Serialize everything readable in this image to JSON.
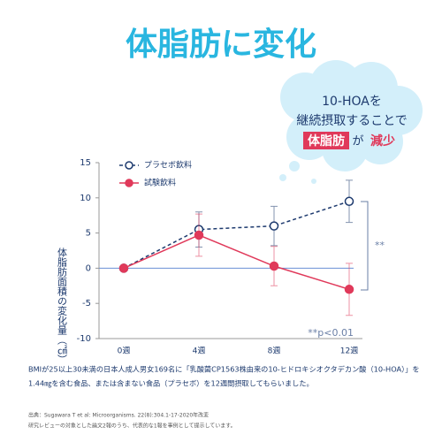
{
  "chart_data": {
    "type": "line",
    "title": "体脂肪に変化",
    "bubble": {
      "line1": "10-HOAを",
      "line2": "継続摂取することで",
      "line3": [
        "体脂肪",
        "が",
        "減少"
      ]
    },
    "y_label": "体脂肪面積の変化量（㎠）",
    "categories": [
      "0週",
      "4週",
      "8週",
      "12週"
    ],
    "series": [
      {
        "name": "プラセボ飲料",
        "color": "#1d3a6e",
        "values": [
          0,
          5.5,
          6,
          9.5
        ],
        "errors": [
          0,
          2.5,
          2.8,
          3
        ]
      },
      {
        "name": "試験飲料",
        "color": "#e0395a",
        "values": [
          0,
          4.7,
          0.3,
          -3
        ],
        "errors": [
          0,
          3,
          2.8,
          3.7
        ]
      }
    ],
    "ylim": [
      -10,
      15
    ],
    "yticks": [
      -10,
      -5,
      0,
      5,
      10,
      15
    ],
    "legend": "upper left",
    "significance": "**",
    "significance_note": "**p<0.01",
    "description": [
      "BMIが25以上30未満の日本人成人男女169名に「乳酸菌CP1563株由来の10-ヒドロキシオクタデカン酸（10-HOA）」を",
      "1.44㎎を含む食品、または含まない食品（プラセボ）を12週間摂取してもらいました。"
    ],
    "source": [
      "出典：Sugawara T et al: Microorganisms. 22(8):304.1-17-2020年改変",
      "研究レビューの対象とした論文2報のうち、代表的な1報を事例として提示しています。"
    ]
  }
}
